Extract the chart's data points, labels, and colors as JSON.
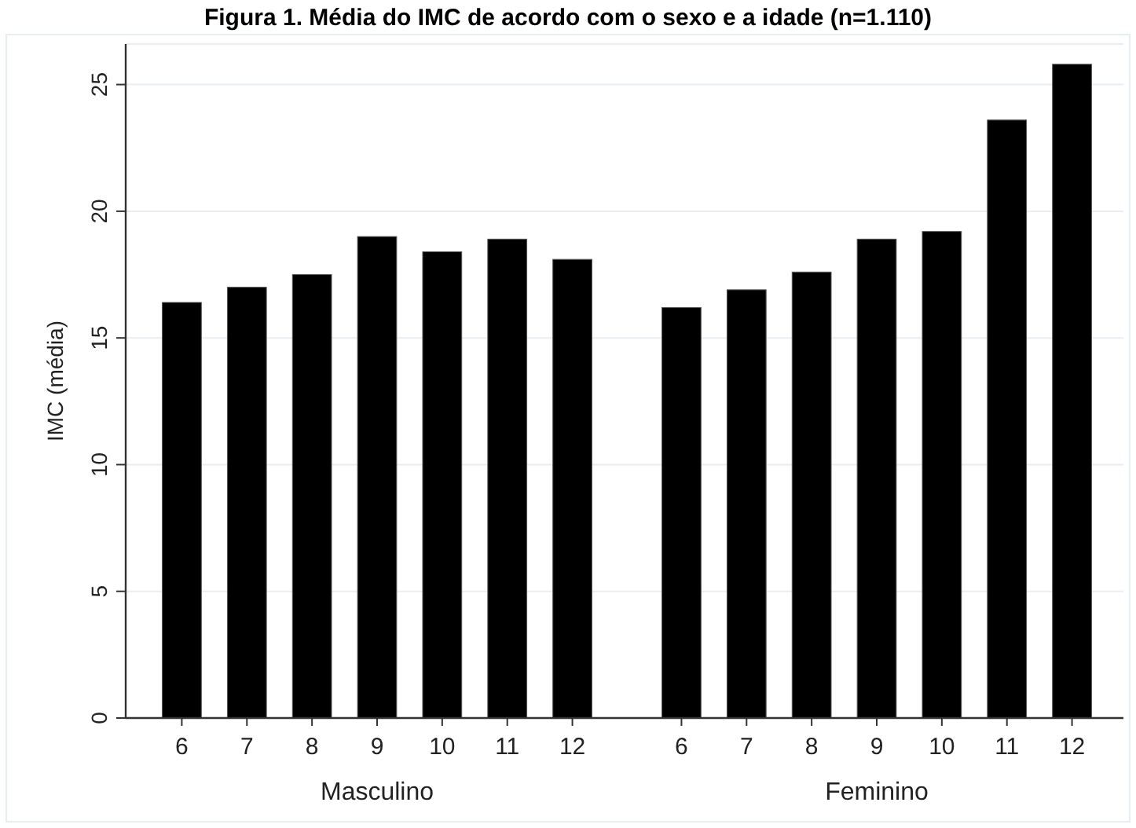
{
  "chart_data": [
    {
      "type": "bar",
      "title": "Figura 1. Média do IMC de acordo com o sexo e a idade (n=1.110)",
      "ylabel": "IMC (média)",
      "xlabel": "Masculino",
      "categories": [
        "6",
        "7",
        "8",
        "9",
        "10",
        "11",
        "12"
      ],
      "values": [
        16.4,
        17.0,
        17.5,
        19.0,
        18.4,
        18.9,
        18.1
      ],
      "color": "#000000",
      "ylim": [
        0,
        26.6
      ],
      "yticks": [
        0,
        5,
        10,
        15,
        20,
        25
      ],
      "grid": "y"
    },
    {
      "type": "bar",
      "xlabel": "Feminino",
      "categories": [
        "6",
        "7",
        "8",
        "9",
        "10",
        "11",
        "12"
      ],
      "values": [
        16.2,
        16.9,
        17.6,
        18.9,
        19.2,
        23.6,
        25.8
      ],
      "color": "#000000",
      "ylim": [
        0,
        26.6
      ],
      "yticks": [
        0,
        5,
        10,
        15,
        20,
        25
      ],
      "grid": "y",
      "tick_labels": "x"
    }
  ]
}
